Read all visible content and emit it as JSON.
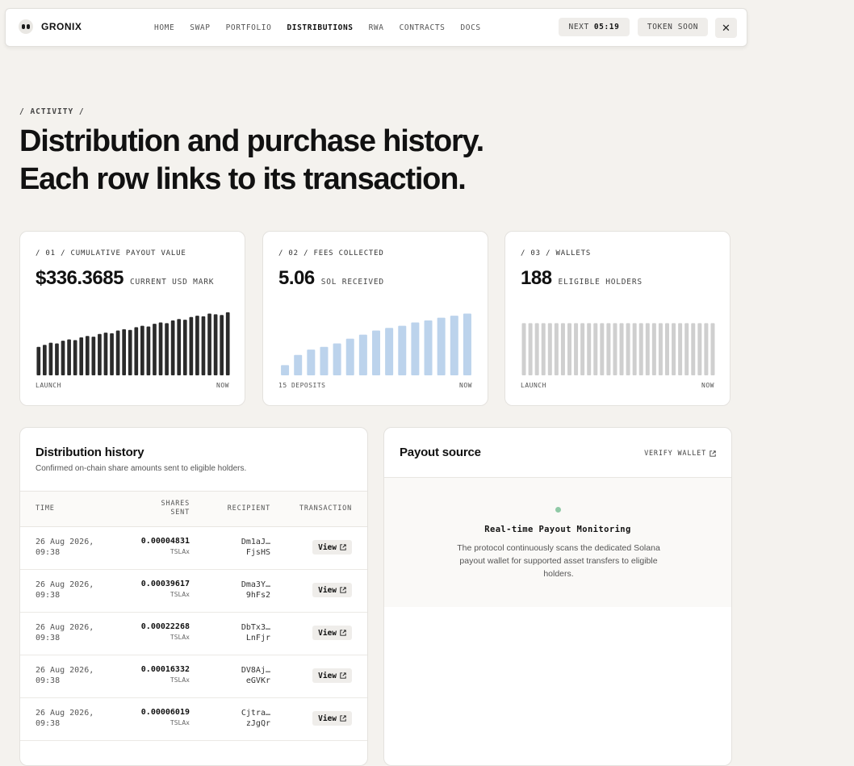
{
  "brand": {
    "name": "GRONIX"
  },
  "nav": {
    "links": [
      "HOME",
      "SWAP",
      "PORTFOLIO",
      "DISTRIBUTIONS",
      "RWA",
      "CONTRACTS",
      "DOCS"
    ],
    "active": "DISTRIBUTIONS",
    "next_label": "NEXT",
    "next_time": "05:19",
    "token_label": "TOKEN SOON",
    "close_glyph": "✕"
  },
  "hero": {
    "eyebrow": "/ ACTIVITY /",
    "title_line1": "Distribution and purchase history.",
    "title_line2": "Each row links to its transaction."
  },
  "stats": [
    {
      "label": "/ 01 / CUMULATIVE PAYOUT VALUE",
      "value": "$336.3685",
      "unit": "CURRENT USD MARK",
      "axis_left": "LAUNCH",
      "axis_right": "NOW",
      "bar_color": "#2b2b2b",
      "bars": [
        0.42,
        0.45,
        0.48,
        0.47,
        0.51,
        0.53,
        0.52,
        0.56,
        0.58,
        0.57,
        0.61,
        0.63,
        0.62,
        0.66,
        0.68,
        0.67,
        0.71,
        0.73,
        0.72,
        0.76,
        0.78,
        0.77,
        0.81,
        0.83,
        0.82,
        0.86,
        0.88,
        0.87,
        0.91,
        0.9,
        0.89,
        0.93
      ]
    },
    {
      "label": "/ 02 / FEES COLLECTED",
      "value": "5.06",
      "unit": "SOL RECEIVED",
      "axis_left": "15 DEPOSITS",
      "axis_right": "NOW",
      "bar_color": "#bcd3ec",
      "bars": [
        0.15,
        0.3,
        0.38,
        0.42,
        0.47,
        0.54,
        0.6,
        0.66,
        0.7,
        0.73,
        0.78,
        0.81,
        0.85,
        0.88,
        0.91
      ]
    },
    {
      "label": "/ 03 / WALLETS",
      "value": "188",
      "unit": "ELIGIBLE HOLDERS",
      "axis_left": "LAUNCH",
      "axis_right": "NOW",
      "bar_color": "#cfcfcf",
      "bars": [
        0.77,
        0.77,
        0.77,
        0.77,
        0.77,
        0.77,
        0.77,
        0.77,
        0.77,
        0.77,
        0.77,
        0.77,
        0.77,
        0.77,
        0.77,
        0.77,
        0.77,
        0.77,
        0.77,
        0.77,
        0.77,
        0.77,
        0.77,
        0.77,
        0.77,
        0.77,
        0.77,
        0.77,
        0.77,
        0.77
      ]
    }
  ],
  "distribution": {
    "title": "Distribution history",
    "subtitle": "Confirmed on-chain share amounts sent to eligible holders.",
    "columns": {
      "time": "TIME",
      "shares_line1": "SHARES",
      "shares_line2": "SENT",
      "recipient": "RECIPIENT",
      "transaction": "TRANSACTION"
    },
    "view_label": "View",
    "rows": [
      {
        "date": "26 Aug 2026,",
        "time": "09:38",
        "amount": "0.00004831",
        "token": "TSLAx",
        "recip1": "Dm1aJ…",
        "recip2": "FjsHS"
      },
      {
        "date": "26 Aug 2026,",
        "time": "09:38",
        "amount": "0.00039617",
        "token": "TSLAx",
        "recip1": "Dma3Y…",
        "recip2": "9hFs2"
      },
      {
        "date": "26 Aug 2026,",
        "time": "09:38",
        "amount": "0.00022268",
        "token": "TSLAx",
        "recip1": "DbTx3…",
        "recip2": "LnFjr"
      },
      {
        "date": "26 Aug 2026,",
        "time": "09:38",
        "amount": "0.00016332",
        "token": "TSLAx",
        "recip1": "DV8Aj…",
        "recip2": "eGVKr"
      },
      {
        "date": "26 Aug 2026,",
        "time": "09:38",
        "amount": "0.00006019",
        "token": "TSLAx",
        "recip1": "Cjtra…",
        "recip2": "zJgQr"
      }
    ]
  },
  "payout": {
    "title": "Payout source",
    "verify_label": "VERIFY WALLET",
    "status_color": "#8fc9a6",
    "heading": "Real-time Payout Monitoring",
    "description": "The protocol continuously scans the dedicated Solana payout wallet for supported asset transfers to eligible holders."
  }
}
